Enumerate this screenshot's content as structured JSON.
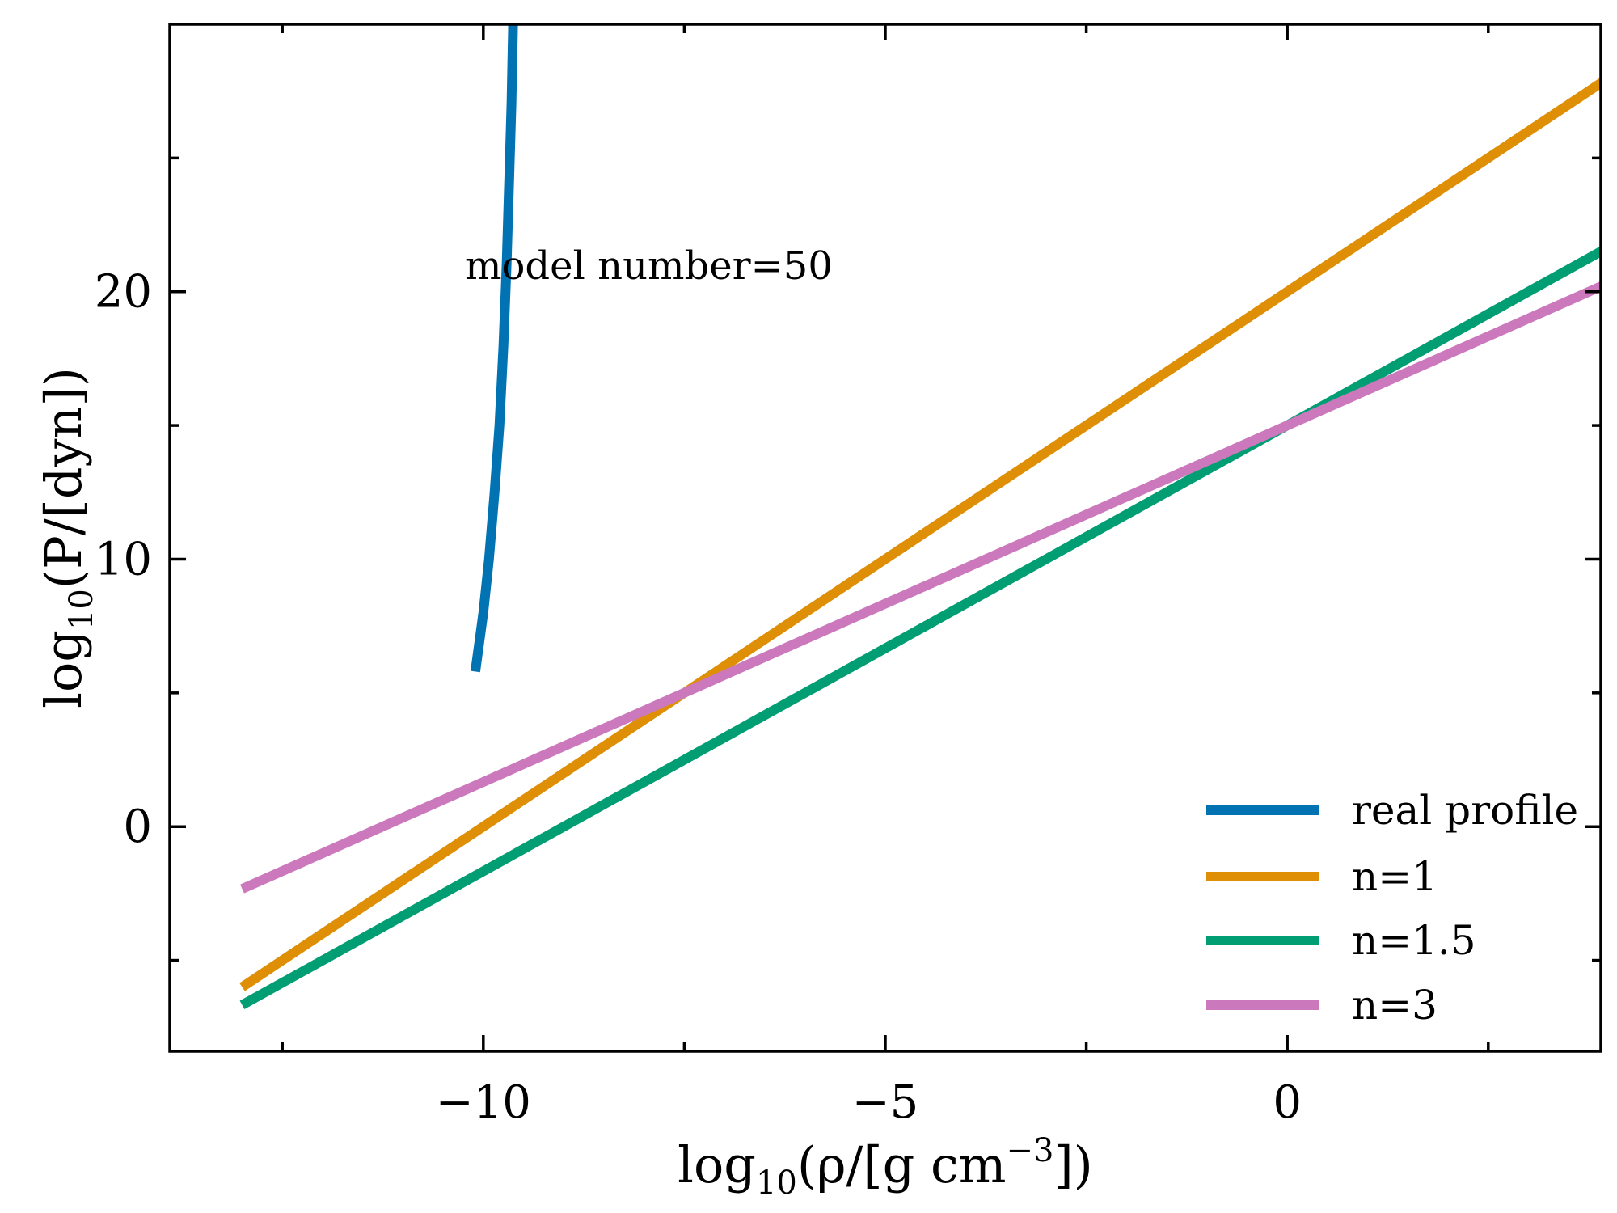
{
  "chart_data": {
    "type": "line",
    "title": "",
    "xlabel": {
      "prefix": "log",
      "sub": "10",
      "body": "(ρ/[g cm",
      "sup": "−3",
      "suffix": "])"
    },
    "ylabel": {
      "prefix": "log",
      "sub": "10",
      "body": "(P/[dyn])"
    },
    "xlim": [
      -13.9,
      3.9
    ],
    "ylim": [
      -8.4,
      30.0
    ],
    "xticks": [
      -10,
      -5,
      0
    ],
    "xtick_labels": [
      "−10",
      "−5",
      "0"
    ],
    "xminor": [
      -12.5,
      -7.5,
      -2.5,
      2.5
    ],
    "yticks": [
      0,
      10,
      20
    ],
    "ytick_labels": [
      "0",
      "10",
      "20"
    ],
    "yminor": [
      -5,
      5,
      15,
      25
    ],
    "annotation": "model number=50",
    "legend_position": "lower right",
    "series": [
      {
        "name": "real profile",
        "color": "#0173b2",
        "x": [
          -10.1,
          -10.0,
          -9.93,
          -9.86,
          -9.8,
          -9.75,
          -9.71,
          -9.68,
          -9.65,
          -9.63
        ],
        "y": [
          5.8,
          8.0,
          10.0,
          12.5,
          15.0,
          18.0,
          21.0,
          24.0,
          27.0,
          30.0
        ]
      },
      {
        "name": "n=1",
        "color": "#de8f05",
        "x": [
          -13.0,
          4.0
        ],
        "y": [
          -6.0,
          28.0
        ]
      },
      {
        "name": "n=1.5",
        "color": "#029e73",
        "x": [
          -13.0,
          4.0
        ],
        "y": [
          -6.67,
          21.67
        ]
      },
      {
        "name": "n=3",
        "color": "#cc78bc",
        "x": [
          -13.0,
          4.0
        ],
        "y": [
          -2.33,
          20.33
        ]
      }
    ]
  }
}
